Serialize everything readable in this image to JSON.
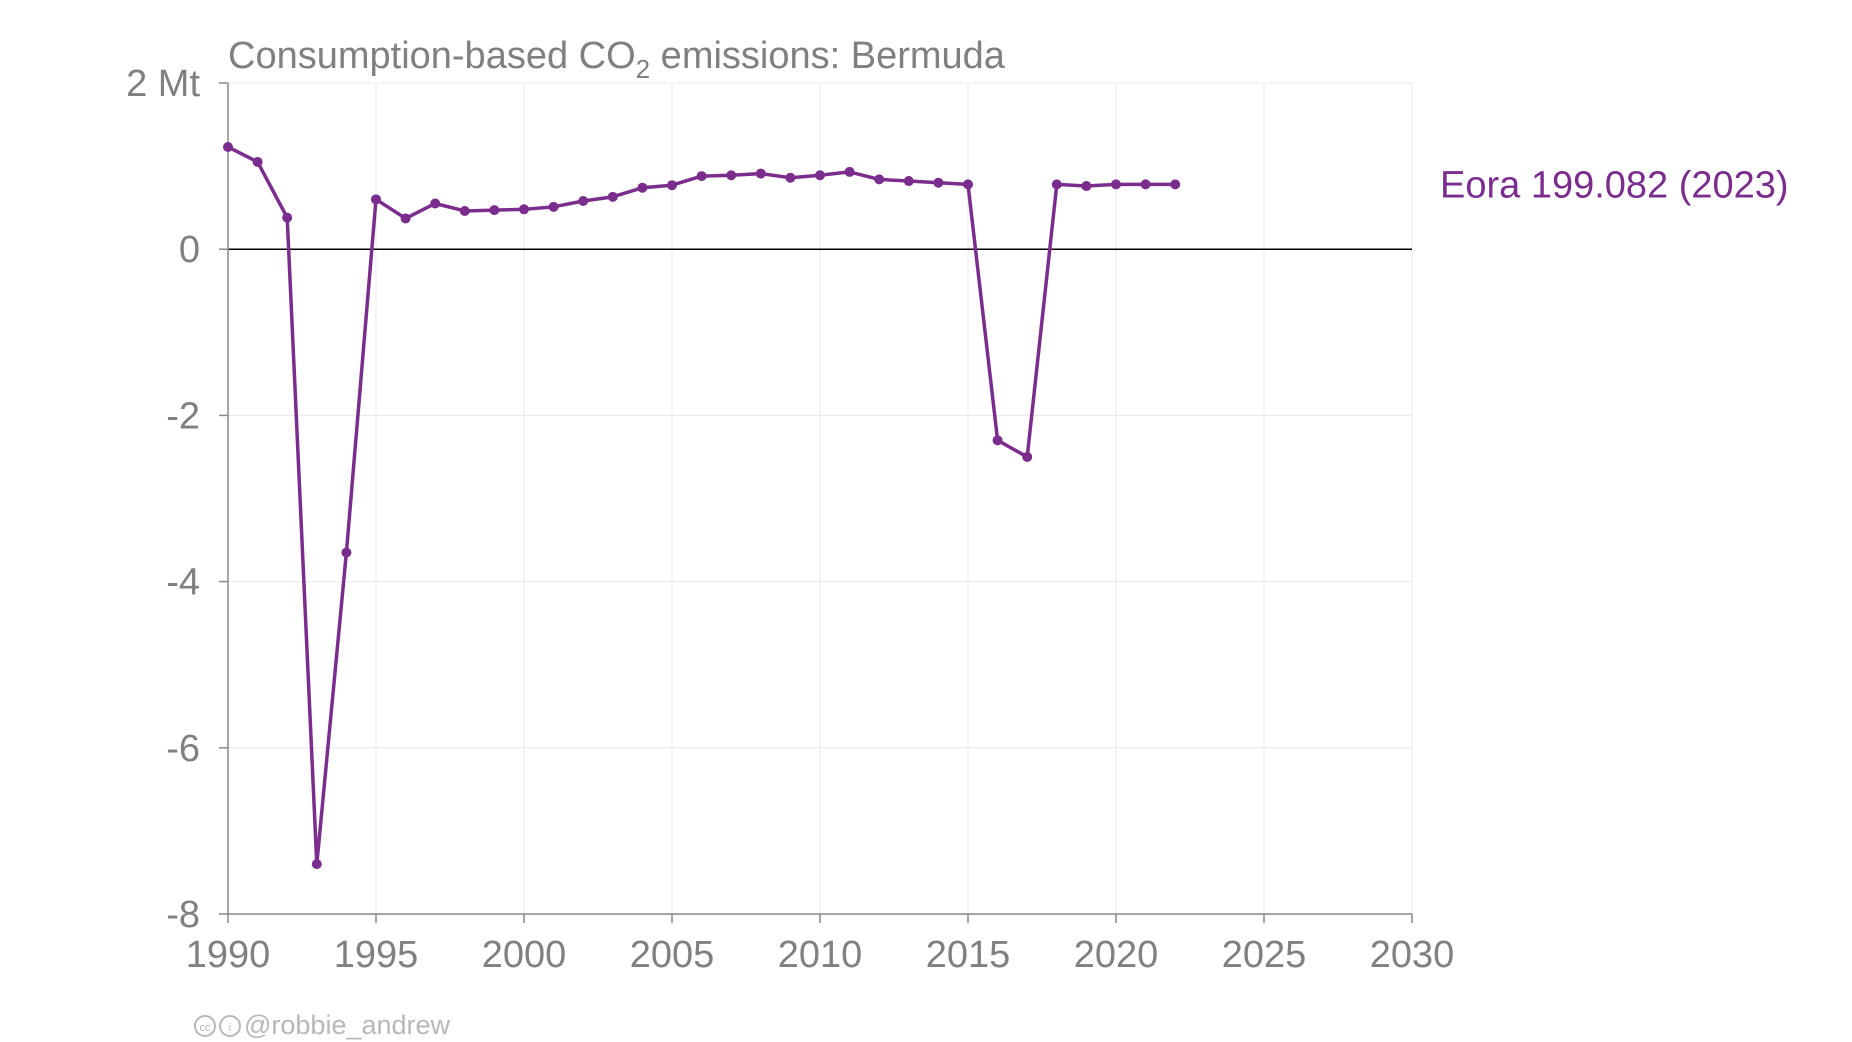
{
  "chart_data": {
    "type": "line",
    "title_main": "Consumption-based CO",
    "title_sub": "2",
    "title_rest": " emissions: Bermuda",
    "xlim": [
      1990,
      2030
    ],
    "ylim": [
      -8,
      2
    ],
    "x_ticks": [
      "1990",
      "1995",
      "2000",
      "2005",
      "2010",
      "2015",
      "2020",
      "2025",
      "2030"
    ],
    "y_ticks": [
      "2 Mt",
      "0",
      "-2",
      "-4",
      "-6",
      "-8"
    ],
    "y_tick_values": [
      2,
      0,
      -2,
      -4,
      -6,
      -8
    ],
    "x_tick_values": [
      1990,
      1995,
      2000,
      2005,
      2010,
      2015,
      2020,
      2025,
      2030
    ],
    "grid": true,
    "series": [
      {
        "name": "Eora 199.082 (2023)",
        "color": "#7b2d8e",
        "x": [
          1990,
          1991,
          1992,
          1993,
          1994,
          1995,
          1996,
          1997,
          1998,
          1999,
          2000,
          2001,
          2002,
          2003,
          2004,
          2005,
          2006,
          2007,
          2008,
          2009,
          2010,
          2011,
          2012,
          2013,
          2014,
          2015,
          2016,
          2017,
          2018,
          2019,
          2020,
          2021,
          2022
        ],
        "values": [
          1.23,
          1.05,
          0.38,
          -7.4,
          -3.65,
          0.6,
          0.37,
          0.55,
          0.46,
          0.47,
          0.48,
          0.51,
          0.58,
          0.63,
          0.74,
          0.77,
          0.88,
          0.89,
          0.91,
          0.86,
          0.89,
          0.93,
          0.84,
          0.82,
          0.8,
          0.78,
          -2.3,
          -2.5,
          0.78,
          0.76,
          0.78,
          0.78,
          0.78
        ]
      }
    ]
  },
  "credit": {
    "cc_label": "cc",
    "by_label": "i",
    "handle": "@robbie_andrew"
  }
}
